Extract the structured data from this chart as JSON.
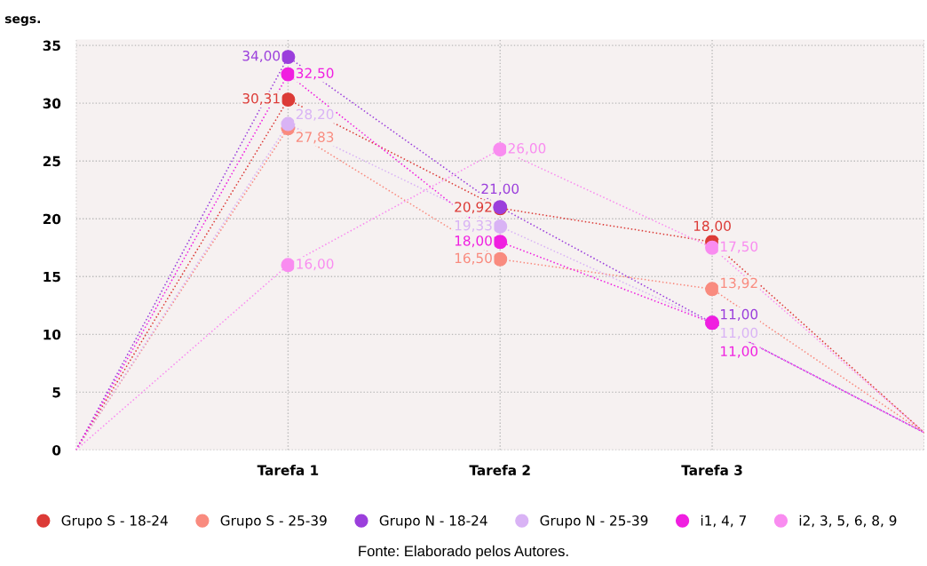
{
  "chart_data": {
    "type": "line",
    "ylabel": "segs.",
    "categories": [
      null,
      "Tarefa 1",
      "Tarefa 2",
      "Tarefa 3",
      null
    ],
    "ylim": [
      0,
      35.5
    ],
    "yticks": [
      0,
      5,
      10,
      15,
      20,
      25,
      30,
      35
    ],
    "grid": true,
    "legend": "bottom",
    "marker": "circle",
    "line_style": "dotted",
    "series": [
      {
        "name": "Grupo S - 18-24",
        "color": "#dc3b37",
        "values": [
          0,
          30.31,
          20.92,
          18.0,
          1.5
        ],
        "value_labels": [
          null,
          "30,31",
          "20,92",
          "18,00",
          null
        ]
      },
      {
        "name": "Grupo S - 25-39",
        "color": "#f98b7f",
        "values": [
          0,
          27.83,
          16.5,
          13.92,
          1.5
        ],
        "value_labels": [
          null,
          "27,83",
          "16,50",
          "13,92",
          null
        ]
      },
      {
        "name": "Grupo N - 18-24",
        "color": "#9b3fdc",
        "values": [
          0,
          34.0,
          21.0,
          11.0,
          1.5
        ],
        "value_labels": [
          null,
          "34,00",
          "21,00",
          "11,00",
          null
        ]
      },
      {
        "name": "Grupo N - 25-39",
        "color": "#d9b3f5",
        "values": [
          0,
          28.2,
          19.33,
          11.0,
          1.5
        ],
        "value_labels": [
          null,
          "28,20",
          "19,33",
          "11,00",
          null
        ]
      },
      {
        "name": "i1, 4, 7",
        "color": "#f01fe0",
        "values": [
          0,
          32.5,
          18.0,
          11.0,
          1.5
        ],
        "value_labels": [
          null,
          "32,50",
          "18,00",
          "11,00",
          null
        ]
      },
      {
        "name": "i2, 3, 5, 6, 8, 9",
        "color": "#f98cf0",
        "values": [
          0,
          16.0,
          26.0,
          17.5,
          1.5
        ],
        "value_labels": [
          null,
          "16,00",
          "26,00",
          "17,50",
          null
        ]
      }
    ],
    "annotations": [
      "Fonte: Elaborado pelos Autores."
    ]
  }
}
